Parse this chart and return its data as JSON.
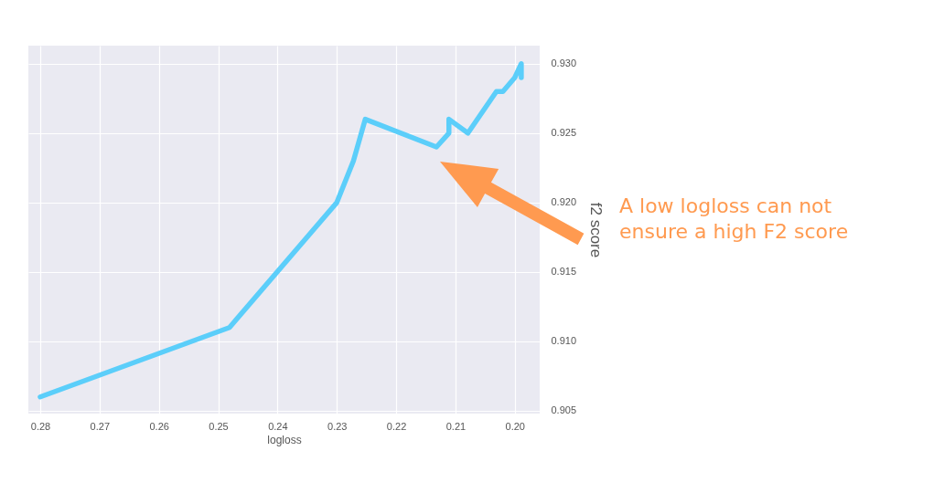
{
  "chart_data": {
    "type": "line",
    "xlabel": "logloss",
    "ylabel": "f2 score",
    "x": [
      0.28,
      0.2481,
      0.23,
      0.2272,
      0.2252,
      0.2132,
      0.2111,
      0.2111,
      0.2079,
      0.2031,
      0.202,
      0.2,
      0.1989,
      0.1989
    ],
    "series": [
      {
        "color": "#5bcefa",
        "values": [
          0.906,
          0.911,
          0.92,
          0.923,
          0.926,
          0.924,
          0.925,
          0.926,
          0.925,
          0.928,
          0.928,
          0.929,
          0.93,
          0.929
        ]
      }
    ],
    "xlim": [
      0.282,
      0.1958
    ],
    "xticks": [
      {
        "value": 0.28,
        "label": "0.28"
      },
      {
        "value": 0.27,
        "label": "0.27"
      },
      {
        "value": 0.26,
        "label": "0.26"
      },
      {
        "value": 0.25,
        "label": "0.25"
      },
      {
        "value": 0.24,
        "label": "0.24"
      },
      {
        "value": 0.23,
        "label": "0.23"
      },
      {
        "value": 0.22,
        "label": "0.22"
      },
      {
        "value": 0.21,
        "label": "0.21"
      },
      {
        "value": 0.2,
        "label": "0.20"
      }
    ],
    "ylim": [
      0.9048,
      0.9313
    ],
    "yticks": [
      {
        "value": 0.905,
        "label": "0.905"
      },
      {
        "value": 0.91,
        "label": "0.910"
      },
      {
        "value": 0.915,
        "label": "0.915"
      },
      {
        "value": 0.92,
        "label": "0.920"
      },
      {
        "value": 0.925,
        "label": "0.925"
      },
      {
        "value": 0.93,
        "label": "0.930"
      }
    ],
    "grid": true,
    "marker": "none",
    "line_style": "solid",
    "annotations": [
      "A low logloss can not ensure a high F2 score"
    ]
  }
}
